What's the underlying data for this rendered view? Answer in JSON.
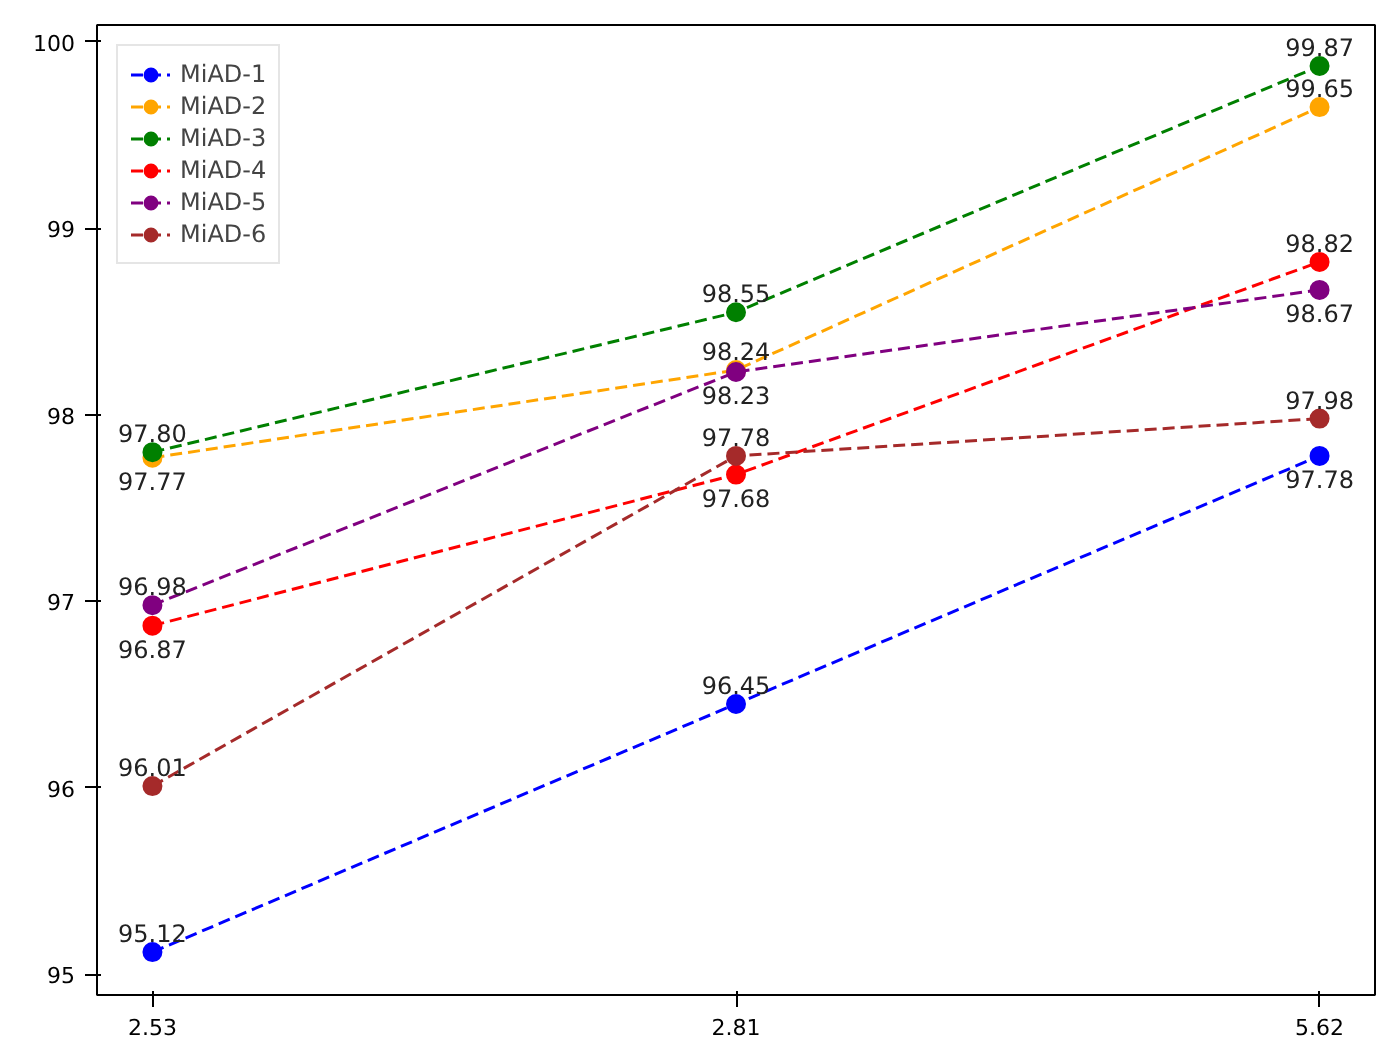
{
  "chart_data": {
    "type": "line",
    "categories": [
      "2.53",
      "2.81",
      "5.62"
    ],
    "series": [
      {
        "name": "MiAD-1",
        "color": "#0000ff",
        "values": [
          95.12,
          96.45,
          97.78
        ],
        "value_labels": [
          "95.12",
          "96.45",
          "97.78"
        ]
      },
      {
        "name": "MiAD-2",
        "color": "#ffa500",
        "values": [
          97.77,
          98.24,
          99.65
        ],
        "value_labels": [
          "97.77",
          "98.24",
          "99.65"
        ]
      },
      {
        "name": "MiAD-3",
        "color": "#008000",
        "values": [
          97.8,
          98.55,
          99.87
        ],
        "value_labels": [
          "97.80",
          "98.55",
          "99.87"
        ]
      },
      {
        "name": "MiAD-4",
        "color": "#ff0000",
        "values": [
          96.87,
          97.68,
          98.82
        ],
        "value_labels": [
          "96.87",
          "97.68",
          "98.82"
        ]
      },
      {
        "name": "MiAD-5",
        "color": "#800080",
        "values": [
          96.98,
          98.23,
          98.67
        ],
        "value_labels": [
          "96.98",
          "98.23",
          "98.67"
        ]
      },
      {
        "name": "MiAD-6",
        "color": "#a52a2a",
        "values": [
          96.01,
          97.78,
          97.98
        ],
        "value_labels": [
          "96.01",
          "97.78",
          "97.98"
        ]
      }
    ],
    "ylim": [
      94.89,
      100.09
    ],
    "yticks": [
      95,
      96,
      97,
      98,
      99,
      100
    ],
    "marker": "circle",
    "line_style": "dashed",
    "legend": "top left",
    "grid": false
  }
}
